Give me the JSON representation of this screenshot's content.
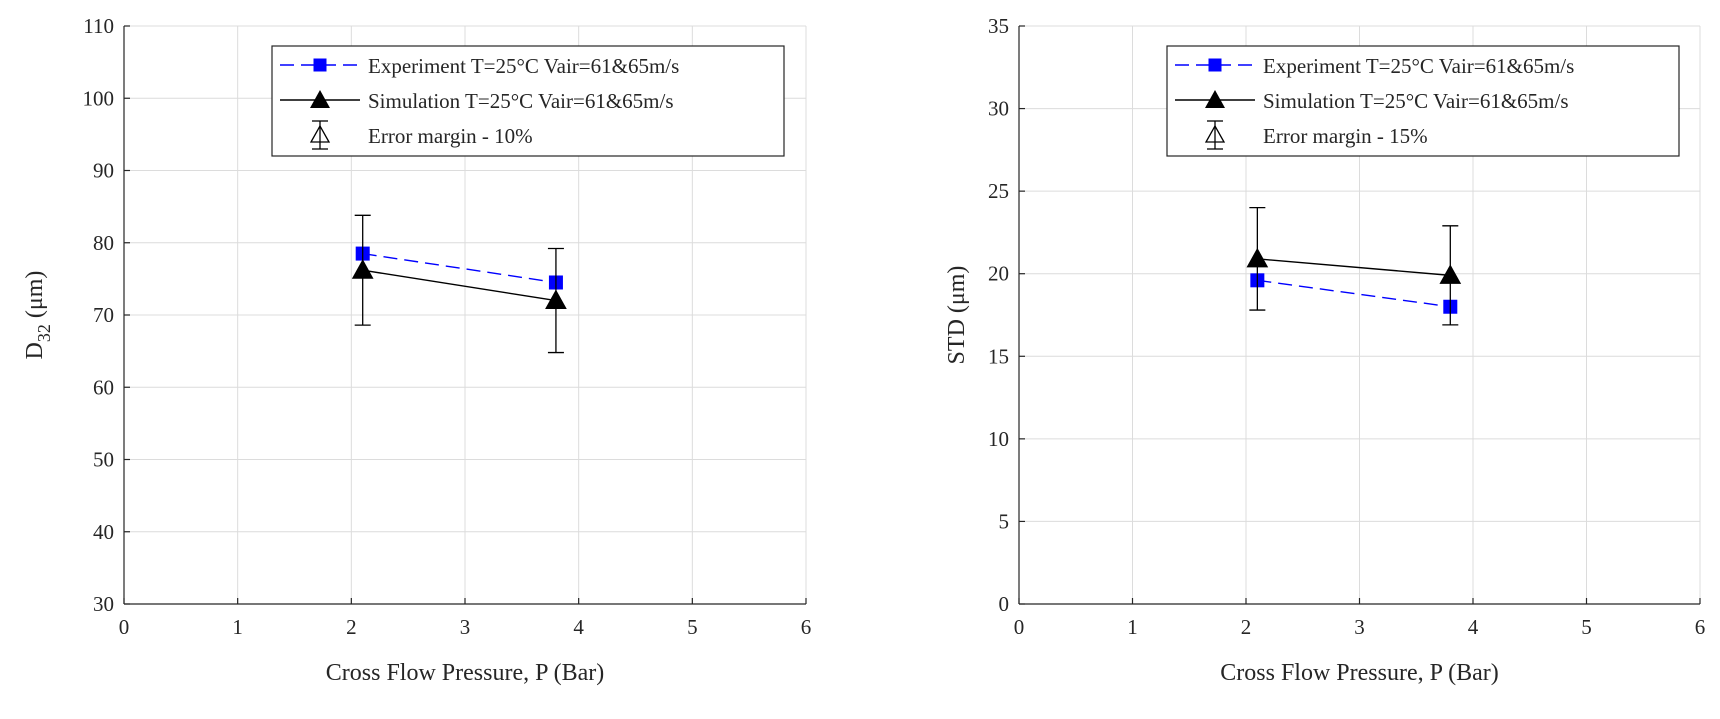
{
  "chart_data": [
    {
      "type": "line",
      "xlabel": "Cross Flow Pressure, P (Bar)",
      "ylabel_main": "D",
      "ylabel_sub": "32",
      "ylabel_unit": " (μm)",
      "xlim": [
        0,
        6
      ],
      "ylim": [
        30,
        110
      ],
      "xticks": [
        0,
        1,
        2,
        3,
        4,
        5,
        6
      ],
      "yticks": [
        30,
        40,
        50,
        60,
        70,
        80,
        90,
        100,
        110
      ],
      "grid": true,
      "legend_position": "top-right",
      "series": [
        {
          "name": "Experiment T=25°C Vair=61&65m/s",
          "color": "#0000ff",
          "line_style": "dashed",
          "marker": "square",
          "x": [
            2.1,
            3.8
          ],
          "y": [
            78.5,
            74.5
          ]
        },
        {
          "name": "Simulation T=25°C Vair=61&65m/s",
          "color": "#000000",
          "line_style": "solid",
          "marker": "triangle",
          "x": [
            2.1,
            3.8
          ],
          "y": [
            76.2,
            72.0
          ],
          "error_low": [
            68.6,
            64.8
          ],
          "error_high": [
            83.8,
            79.2
          ]
        }
      ],
      "error_legend": "Error margin - 10%"
    },
    {
      "type": "line",
      "xlabel": "Cross Flow Pressure, P (Bar)",
      "ylabel_main": "STD",
      "ylabel_sub": "",
      "ylabel_unit": " (μm)",
      "xlim": [
        0,
        6
      ],
      "ylim": [
        0,
        35
      ],
      "xticks": [
        0,
        1,
        2,
        3,
        4,
        5,
        6
      ],
      "yticks": [
        0,
        5,
        10,
        15,
        20,
        25,
        30,
        35
      ],
      "grid": true,
      "legend_position": "top-right",
      "series": [
        {
          "name": "Experiment T=25°C Vair=61&65m/s",
          "color": "#0000ff",
          "line_style": "dashed",
          "marker": "square",
          "x": [
            2.1,
            3.8
          ],
          "y": [
            19.6,
            18.0
          ]
        },
        {
          "name": "Simulation T=25°C Vair=61&65m/s",
          "color": "#000000",
          "line_style": "solid",
          "marker": "triangle",
          "x": [
            2.1,
            3.8
          ],
          "y": [
            20.9,
            19.9
          ],
          "error_low": [
            17.8,
            16.9
          ],
          "error_high": [
            24.0,
            22.9
          ]
        }
      ],
      "error_legend": "Error margin - 15%"
    }
  ]
}
